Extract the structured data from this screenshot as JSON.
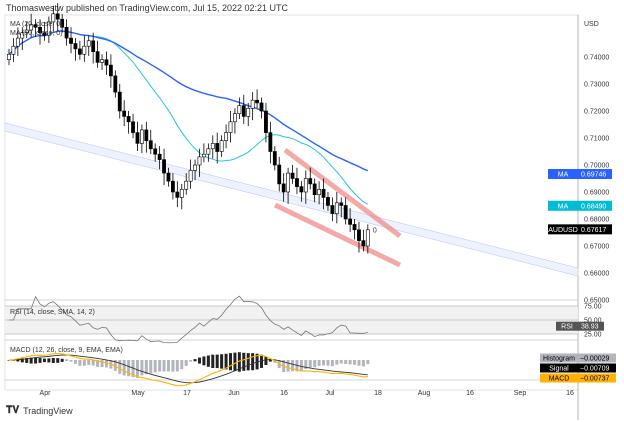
{
  "header": {
    "text": "Thomaswestw published on TradingView.com, Jul 15, 2022 02:21 UTC"
  },
  "footer": {
    "brand": "TradingView"
  },
  "chart_data": {
    "type": "candlestick",
    "symbol": "AUDUSD",
    "currency": "USD",
    "legend": {
      "ma1": "MA (20, close, 0)",
      "ma2": "MA (50, close, 0)",
      "rsi": "RSI (14, close, SMA, 14, 2)",
      "macd": "MACD (12, 26, close, 9, EMA, EMA)"
    },
    "closes": [
      0.741,
      0.744,
      0.747,
      0.749,
      0.75,
      0.752,
      0.751,
      0.749,
      0.748,
      0.753,
      0.756,
      0.754,
      0.751,
      0.747,
      0.745,
      0.743,
      0.741,
      0.744,
      0.746,
      0.742,
      0.738,
      0.739,
      0.737,
      0.733,
      0.727,
      0.72,
      0.718,
      0.716,
      0.712,
      0.708,
      0.713,
      0.709,
      0.706,
      0.704,
      0.702,
      0.697,
      0.694,
      0.69,
      0.688,
      0.691,
      0.694,
      0.698,
      0.7,
      0.703,
      0.704,
      0.706,
      0.708,
      0.705,
      0.709,
      0.712,
      0.716,
      0.719,
      0.722,
      0.718,
      0.721,
      0.724,
      0.723,
      0.72,
      0.712,
      0.705,
      0.7,
      0.693,
      0.69,
      0.697,
      0.695,
      0.692,
      0.69,
      0.695,
      0.693,
      0.689,
      0.691,
      0.688,
      0.685,
      0.682,
      0.686,
      0.685,
      0.68,
      0.678,
      0.676,
      0.672,
      0.67,
      0.676
    ],
    "y_ticks": [
      "0.74000",
      "0.73000",
      "0.72000",
      "0.71000",
      "0.70000",
      "0.69000",
      "0.68000",
      "0.67000",
      "0.66000",
      "0.65000"
    ],
    "x_ticks": [
      "Apr",
      "May",
      "17",
      "Jun",
      "16",
      "Jul",
      "18",
      "Aug",
      "16",
      "Sep",
      "16"
    ],
    "rsi_ticks": [
      "75.00",
      "50.00",
      "25.00"
    ],
    "ylim": [
      0.645,
      0.757
    ],
    "badges": [
      {
        "label": "MA",
        "value": "0.69746",
        "color": "#2962ff",
        "price": 0.69746
      },
      {
        "label": "MA",
        "value": "0.68490",
        "color": "#00bcd4",
        "price": 0.6849
      },
      {
        "label": "AUDUSD",
        "value": "0.67617",
        "color": "#000000",
        "price": 0.67617
      }
    ],
    "rsi_badge": {
      "label": "RSI",
      "value": "38.93"
    },
    "macd_badges": [
      {
        "label": "Histogram",
        "value": "−0.00029",
        "color": "#b2b5be",
        "text": "#000"
      },
      {
        "label": "Signal",
        "value": "−0.00709",
        "color": "#000000",
        "text": "#fff"
      },
      {
        "label": "MACD",
        "value": "−0.00737",
        "color": "#ffb300",
        "text": "#000"
      }
    ],
    "colors": {
      "ma20": "#26c6da",
      "ma50": "#2962ff",
      "macd": "#ffb300",
      "signal": "#333333",
      "wedge": "#f28b8b",
      "channel": "#c5d4f5"
    }
  }
}
